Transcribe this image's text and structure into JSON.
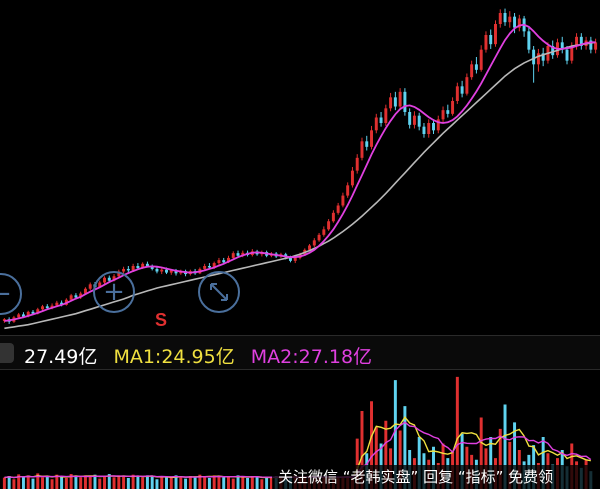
{
  "volume_bar": {
    "vol_value": "27.49亿",
    "ma1_label": "MA1:24.95亿",
    "ma2_label": "MA2:27.18亿",
    "vol_color": "#ffffff",
    "ma1_color": "#f0e040",
    "ma2_color": "#e040e0"
  },
  "signal_label": "S",
  "watermark_text": "关注微信 “老韩实盘” 回复 “指标” 免费领",
  "colors": {
    "up": "#e03030",
    "down": "#5fd3f0",
    "ma1": "#f0e040",
    "ma2": "#e040e0",
    "ma_long": "#b8b8b8"
  },
  "icons": {
    "zoom_out": "minus-icon",
    "zoom_in": "plus-icon",
    "fullscreen": "expand-icon"
  },
  "chart_data": {
    "type": "candlestick",
    "candles": [
      [
        2.2,
        2.25,
        2.28,
        2.15
      ],
      [
        2.25,
        2.18,
        2.3,
        2.12
      ],
      [
        2.18,
        2.3,
        2.34,
        2.15
      ],
      [
        2.3,
        2.38,
        2.42,
        2.26
      ],
      [
        2.38,
        2.32,
        2.44,
        2.28
      ],
      [
        2.32,
        2.45,
        2.48,
        2.3
      ],
      [
        2.45,
        2.4,
        2.5,
        2.36
      ],
      [
        2.4,
        2.52,
        2.56,
        2.38
      ],
      [
        2.52,
        2.6,
        2.64,
        2.48
      ],
      [
        2.6,
        2.55,
        2.66,
        2.5
      ],
      [
        2.55,
        2.62,
        2.68,
        2.52
      ],
      [
        2.62,
        2.7,
        2.75,
        2.58
      ],
      [
        2.7,
        2.64,
        2.76,
        2.6
      ],
      [
        2.64,
        2.78,
        2.82,
        2.62
      ],
      [
        2.78,
        2.9,
        2.94,
        2.74
      ],
      [
        2.9,
        2.84,
        2.96,
        2.8
      ],
      [
        2.84,
        2.95,
        3.0,
        2.8
      ],
      [
        2.95,
        3.08,
        3.12,
        2.92
      ],
      [
        3.08,
        3.2,
        3.25,
        3.04
      ],
      [
        3.2,
        3.12,
        3.26,
        3.08
      ],
      [
        3.12,
        3.25,
        3.3,
        3.1
      ],
      [
        3.25,
        3.38,
        3.42,
        3.2
      ],
      [
        3.38,
        3.3,
        3.44,
        3.26
      ],
      [
        3.3,
        3.42,
        3.48,
        3.28
      ],
      [
        3.42,
        3.55,
        3.6,
        3.38
      ],
      [
        3.55,
        3.62,
        3.68,
        3.5
      ],
      [
        3.62,
        3.58,
        3.7,
        3.52
      ],
      [
        3.58,
        3.7,
        3.76,
        3.54
      ],
      [
        3.7,
        3.64,
        3.78,
        3.6
      ],
      [
        3.64,
        3.76,
        3.8,
        3.62
      ],
      [
        3.76,
        3.7,
        3.82,
        3.66
      ],
      [
        3.7,
        3.62,
        3.74,
        3.58
      ],
      [
        3.62,
        3.55,
        3.66,
        3.5
      ],
      [
        3.55,
        3.6,
        3.64,
        3.48
      ],
      [
        3.6,
        3.52,
        3.66,
        3.48
      ],
      [
        3.52,
        3.58,
        3.62,
        3.46
      ],
      [
        3.58,
        3.5,
        3.62,
        3.44
      ],
      [
        3.5,
        3.56,
        3.6,
        3.46
      ],
      [
        3.56,
        3.48,
        3.6,
        3.42
      ],
      [
        3.48,
        3.56,
        3.6,
        3.44
      ],
      [
        3.56,
        3.5,
        3.62,
        3.46
      ],
      [
        3.5,
        3.62,
        3.66,
        3.48
      ],
      [
        3.62,
        3.7,
        3.76,
        3.58
      ],
      [
        3.7,
        3.66,
        3.78,
        3.62
      ],
      [
        3.66,
        3.78,
        3.82,
        3.62
      ],
      [
        3.78,
        3.86,
        3.92,
        3.74
      ],
      [
        3.86,
        3.8,
        3.92,
        3.76
      ],
      [
        3.8,
        3.92,
        3.98,
        3.78
      ],
      [
        3.92,
        4.05,
        4.1,
        3.88
      ],
      [
        4.05,
        3.98,
        4.12,
        3.94
      ],
      [
        3.98,
        4.06,
        4.12,
        3.94
      ],
      [
        4.06,
        4.0,
        4.12,
        3.96
      ],
      [
        4.0,
        4.1,
        4.16,
        3.96
      ],
      [
        4.1,
        4.02,
        4.14,
        3.98
      ],
      [
        4.02,
        4.08,
        4.12,
        3.96
      ],
      [
        4.08,
        3.98,
        4.12,
        3.94
      ],
      [
        3.98,
        4.04,
        4.08,
        3.94
      ],
      [
        4.04,
        3.96,
        4.08,
        3.92
      ],
      [
        3.96,
        4.02,
        4.06,
        3.92
      ],
      [
        4.02,
        3.94,
        4.06,
        3.88
      ],
      [
        3.94,
        3.84,
        3.98,
        3.8
      ],
      [
        3.84,
        3.92,
        3.96,
        3.78
      ],
      [
        3.92,
        4.02,
        4.06,
        3.88
      ],
      [
        4.02,
        4.14,
        4.18,
        3.98
      ],
      [
        4.14,
        4.26,
        4.3,
        4.1
      ],
      [
        4.26,
        4.4,
        4.46,
        4.22
      ],
      [
        4.4,
        4.55,
        4.6,
        4.36
      ],
      [
        4.55,
        4.7,
        4.78,
        4.5
      ],
      [
        4.7,
        4.92,
        4.98,
        4.66
      ],
      [
        4.92,
        5.15,
        5.22,
        4.88
      ],
      [
        5.15,
        5.35,
        5.42,
        5.1
      ],
      [
        5.35,
        5.62,
        5.7,
        5.3
      ],
      [
        5.62,
        5.9,
        5.98,
        5.56
      ],
      [
        5.9,
        6.3,
        6.4,
        5.84
      ],
      [
        6.3,
        6.65,
        6.75,
        6.22
      ],
      [
        6.65,
        7.1,
        7.2,
        6.58
      ],
      [
        7.1,
        6.95,
        7.25,
        6.85
      ],
      [
        6.95,
        7.4,
        7.52,
        6.88
      ],
      [
        7.4,
        7.75,
        7.85,
        7.32
      ],
      [
        7.75,
        7.6,
        7.9,
        7.5
      ],
      [
        7.6,
        8.0,
        8.1,
        7.52
      ],
      [
        8.0,
        8.3,
        8.42,
        7.92
      ],
      [
        8.3,
        8.05,
        8.45,
        7.95
      ],
      [
        8.05,
        8.45,
        8.55,
        7.98
      ],
      [
        8.45,
        7.9,
        8.55,
        7.8
      ],
      [
        7.9,
        7.55,
        8.0,
        7.45
      ],
      [
        7.55,
        7.8,
        7.92,
        7.45
      ],
      [
        7.8,
        7.5,
        7.88,
        7.4
      ],
      [
        7.5,
        7.3,
        7.6,
        7.2
      ],
      [
        7.3,
        7.6,
        7.7,
        7.2
      ],
      [
        7.6,
        7.4,
        7.7,
        7.3
      ],
      [
        7.4,
        7.7,
        7.8,
        7.32
      ],
      [
        7.7,
        7.95,
        8.05,
        7.62
      ],
      [
        7.95,
        7.85,
        8.1,
        7.75
      ],
      [
        7.85,
        8.2,
        8.3,
        7.8
      ],
      [
        8.2,
        8.6,
        8.7,
        8.12
      ],
      [
        8.6,
        8.4,
        8.75,
        8.3
      ],
      [
        8.4,
        8.85,
        8.95,
        8.35
      ],
      [
        8.85,
        9.2,
        9.3,
        8.78
      ],
      [
        9.2,
        9.05,
        9.4,
        8.95
      ],
      [
        9.05,
        9.6,
        9.72,
        9.0
      ],
      [
        9.6,
        10.0,
        10.1,
        9.52
      ],
      [
        10.0,
        9.75,
        10.15,
        9.62
      ],
      [
        9.75,
        10.3,
        10.4,
        9.68
      ],
      [
        10.3,
        10.6,
        10.7,
        10.2
      ],
      [
        10.6,
        10.35,
        10.72,
        10.25
      ],
      [
        10.35,
        10.5,
        10.65,
        10.2
      ],
      [
        10.5,
        10.2,
        10.6,
        10.05
      ],
      [
        10.2,
        10.45,
        10.55,
        10.1
      ],
      [
        10.45,
        10.1,
        10.52,
        9.95
      ],
      [
        10.1,
        9.6,
        10.2,
        9.5
      ],
      [
        9.6,
        9.2,
        9.7,
        8.7
      ],
      [
        9.2,
        9.5,
        9.62,
        9.0
      ],
      [
        9.5,
        9.3,
        9.65,
        9.15
      ],
      [
        9.3,
        9.7,
        9.8,
        9.22
      ],
      [
        9.7,
        9.45,
        9.85,
        9.35
      ],
      [
        9.45,
        9.8,
        9.9,
        9.38
      ],
      [
        9.8,
        9.6,
        9.95,
        9.5
      ],
      [
        9.6,
        9.3,
        9.7,
        9.2
      ],
      [
        9.3,
        9.7,
        9.8,
        9.22
      ],
      [
        9.7,
        9.95,
        10.05,
        9.6
      ],
      [
        9.95,
        9.7,
        10.05,
        9.6
      ],
      [
        9.7,
        9.85,
        9.95,
        9.6
      ],
      [
        9.85,
        9.6,
        9.95,
        9.5
      ],
      [
        9.6,
        9.8,
        9.9,
        9.5
      ]
    ],
    "volumes": [
      0.35,
      0.4,
      0.3,
      0.45,
      0.38,
      0.42,
      0.32,
      0.48,
      0.36,
      0.4,
      0.3,
      0.44,
      0.38,
      0.34,
      0.46,
      0.4,
      0.36,
      0.42,
      0.38,
      0.44,
      0.32,
      0.4,
      0.46,
      0.36,
      0.42,
      0.38,
      0.34,
      0.44,
      0.4,
      0.36,
      0.42,
      0.38,
      0.3,
      0.4,
      0.36,
      0.34,
      0.42,
      0.38,
      0.32,
      0.4,
      0.36,
      0.44,
      0.38,
      0.34,
      0.42,
      0.4,
      0.36,
      0.38,
      0.32,
      0.42,
      0.38,
      0.34,
      0.4,
      0.36,
      0.3,
      0.38,
      0.34,
      0.4,
      0.36,
      0.32,
      0.38,
      0.42,
      0.36,
      0.4,
      0.34,
      0.38,
      0.32,
      0.36,
      0.4,
      0.34,
      0.38,
      0.36,
      0.4,
      0.34,
      1.55,
      2.4,
      1.1,
      2.7,
      1.9,
      1.4,
      2.1,
      1.25,
      3.35,
      1.8,
      2.55,
      1.2,
      0.95,
      1.6,
      1.1,
      0.9,
      1.3,
      0.8,
      1.4,
      0.95,
      1.15,
      3.45,
      1.7,
      1.3,
      1.05,
      0.9,
      2.2,
      1.25,
      1.6,
      0.95,
      1.85,
      2.6,
      1.45,
      2.05,
      1.2,
      0.85,
      1.05,
      1.35,
      0.8,
      1.6,
      1.1,
      0.75,
      0.95,
      1.2,
      0.7,
      1.4,
      0.85,
      0.65,
      0.9,
      0.55
    ],
    "ma1": [
      2.2,
      2.22,
      2.24,
      2.27,
      2.3,
      2.34,
      2.38,
      2.42,
      2.47,
      2.52,
      2.56,
      2.6,
      2.64,
      2.69,
      2.75,
      2.81,
      2.86,
      2.93,
      3.0,
      3.06,
      3.12,
      3.19,
      3.26,
      3.32,
      3.38,
      3.45,
      3.51,
      3.56,
      3.61,
      3.65,
      3.68,
      3.69,
      3.68,
      3.66,
      3.63,
      3.6,
      3.57,
      3.55,
      3.53,
      3.52,
      3.53,
      3.55,
      3.58,
      3.62,
      3.66,
      3.71,
      3.76,
      3.82,
      3.88,
      3.94,
      3.99,
      4.03,
      4.06,
      4.07,
      4.06,
      4.04,
      4.02,
      4.0,
      3.98,
      3.96,
      3.94,
      3.94,
      3.96,
      4.0,
      4.06,
      4.14,
      4.25,
      4.38,
      4.53,
      4.7,
      4.9,
      5.12,
      5.36,
      5.62,
      5.9,
      6.18,
      6.46,
      6.74,
      7.0,
      7.24,
      7.46,
      7.66,
      7.84,
      7.98,
      8.06,
      8.08,
      8.04,
      7.96,
      7.86,
      7.76,
      7.68,
      7.62,
      7.6,
      7.62,
      7.68,
      7.78,
      7.92,
      8.08,
      8.26,
      8.46,
      8.68,
      8.92,
      9.16,
      9.4,
      9.64,
      9.86,
      10.04,
      10.18,
      10.26,
      10.28,
      10.22,
      10.1,
      9.96,
      9.84,
      9.74,
      9.66,
      9.62,
      9.62,
      9.64,
      9.66,
      9.7,
      9.74,
      9.78,
      9.8,
      9.8
    ],
    "ma_long": [
      2.0,
      2.02,
      2.04,
      2.06,
      2.08,
      2.1,
      2.13,
      2.16,
      2.19,
      2.22,
      2.25,
      2.28,
      2.31,
      2.34,
      2.37,
      2.4,
      2.44,
      2.48,
      2.52,
      2.56,
      2.6,
      2.64,
      2.68,
      2.72,
      2.76,
      2.8,
      2.85,
      2.9,
      2.94,
      2.98,
      3.02,
      3.06,
      3.1,
      3.13,
      3.16,
      3.19,
      3.22,
      3.25,
      3.28,
      3.31,
      3.34,
      3.37,
      3.4,
      3.43,
      3.46,
      3.49,
      3.52,
      3.55,
      3.58,
      3.61,
      3.64,
      3.67,
      3.7,
      3.73,
      3.76,
      3.79,
      3.82,
      3.85,
      3.88,
      3.91,
      3.94,
      3.98,
      4.02,
      4.07,
      4.12,
      4.18,
      4.24,
      4.31,
      4.38,
      4.46,
      4.55,
      4.64,
      4.74,
      4.84,
      4.95,
      5.06,
      5.18,
      5.3,
      5.42,
      5.55,
      5.68,
      5.82,
      5.96,
      6.1,
      6.24,
      6.38,
      6.52,
      6.66,
      6.8,
      6.93,
      7.06,
      7.19,
      7.32,
      7.44,
      7.56,
      7.68,
      7.8,
      7.92,
      8.04,
      8.16,
      8.28,
      8.4,
      8.52,
      8.64,
      8.76,
      8.88,
      8.98,
      9.08,
      9.16,
      9.24,
      9.3,
      9.36,
      9.42,
      9.46,
      9.5,
      9.54,
      9.58,
      9.62,
      9.66,
      9.7,
      9.72,
      9.74,
      9.76,
      9.78,
      9.8
    ],
    "price_ylim": [
      1.9,
      10.9
    ],
    "volume_ylim": [
      0,
      3.6
    ]
  }
}
